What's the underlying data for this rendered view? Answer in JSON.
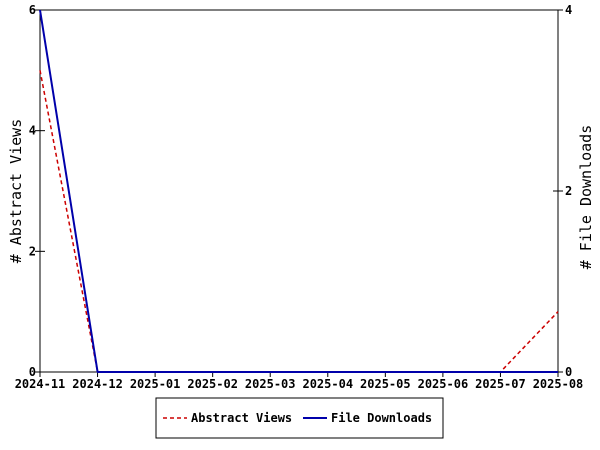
{
  "chart_data": {
    "type": "line",
    "x": [
      "2024-11",
      "2024-12",
      "2025-01",
      "2025-02",
      "2025-03",
      "2025-04",
      "2025-05",
      "2025-06",
      "2025-07",
      "2025-08"
    ],
    "y_left": {
      "label": "# Abstract Views",
      "ylim": [
        0,
        6
      ],
      "ticks": [
        "0",
        "2",
        "4",
        "6"
      ]
    },
    "y_right": {
      "label": "# File Downloads",
      "ylim": [
        0,
        4
      ],
      "ticks": [
        "0",
        "2",
        "4"
      ]
    },
    "series": [
      {
        "name": "Abstract Views",
        "axis": "left",
        "color": "#cc0000",
        "style": "dashed",
        "values": [
          5,
          0,
          0,
          0,
          0,
          0,
          0,
          0,
          0,
          1
        ]
      },
      {
        "name": "File Downloads",
        "axis": "right",
        "color": "#0000aa",
        "style": "solid",
        "values": [
          4,
          0,
          0,
          0,
          0,
          0,
          0,
          0,
          0,
          0
        ]
      }
    ],
    "grid": false,
    "legend_position": "bottom-center"
  }
}
